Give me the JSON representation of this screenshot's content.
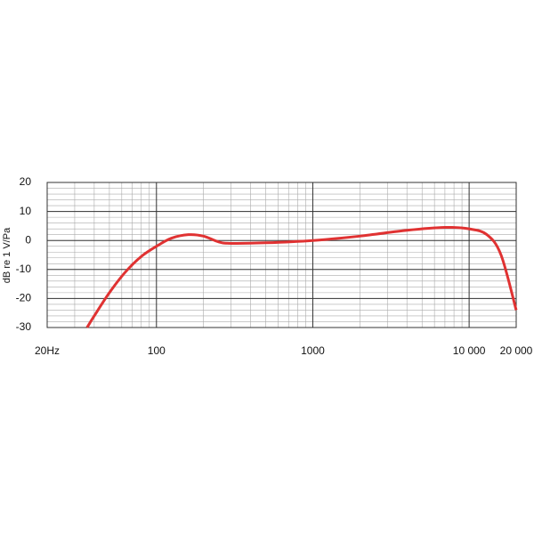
{
  "chart_data": {
    "type": "line",
    "y_label": "dB re 1 V/Pa",
    "log_x": true,
    "grid": true,
    "xlim": [
      20,
      20000
    ],
    "ylim": [
      -30,
      20
    ],
    "xticks": [
      {
        "value": 20,
        "label": "20Hz"
      },
      100,
      1000,
      {
        "value": 10000,
        "label": "10 000"
      },
      {
        "value": 20000,
        "label": "20 000"
      }
    ],
    "yticks": [
      20,
      10,
      0,
      -10,
      -20,
      -30
    ],
    "series": [
      {
        "color": "#e03232",
        "x": [
          36,
          40,
          50,
          63,
          80,
          100,
          125,
          160,
          200,
          250,
          300,
          500,
          1000,
          2000,
          4000,
          7000,
          10000,
          13000,
          16000,
          20000
        ],
        "values": [
          -30,
          -26,
          -18,
          -11,
          -5.5,
          -2,
          0.8,
          2,
          1.5,
          -0.5,
          -1,
          -0.8,
          0,
          1.5,
          3.5,
          4.5,
          4,
          2,
          -5,
          -24
        ]
      }
    ]
  }
}
